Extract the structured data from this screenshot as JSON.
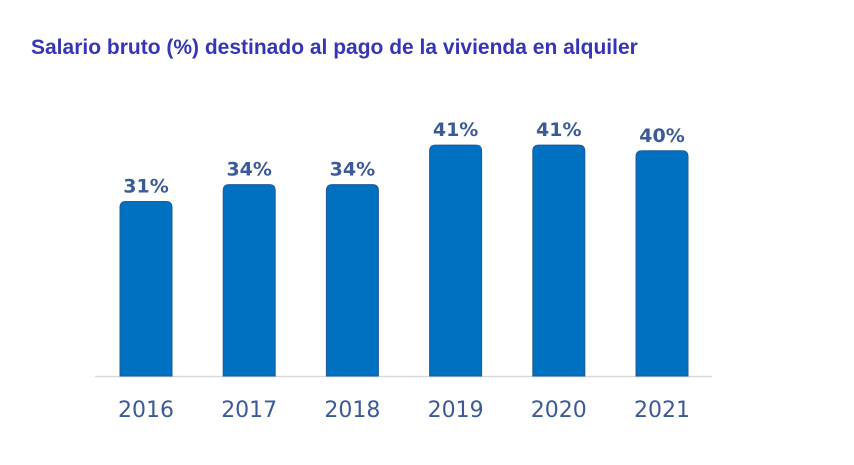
{
  "chart_data": {
    "type": "bar",
    "title": "Salario bruto (%) destinado al pago de la vivienda en alquiler",
    "categories": [
      "2016",
      "2017",
      "2018",
      "2019",
      "2020",
      "2021"
    ],
    "values": [
      31,
      34,
      34,
      41,
      41,
      40
    ],
    "value_labels": [
      "31%",
      "34%",
      "34%",
      "41%",
      "41%",
      "40%"
    ],
    "xlabel": "",
    "ylabel": "",
    "ylim": [
      0,
      41
    ],
    "grid": false,
    "legend": "none",
    "colors": {
      "bar": "#0070c0",
      "bar_edge": "#1f5a9a",
      "label": "#3b5a98",
      "title": "#3535b5",
      "axis": "#d9d9d9"
    }
  }
}
